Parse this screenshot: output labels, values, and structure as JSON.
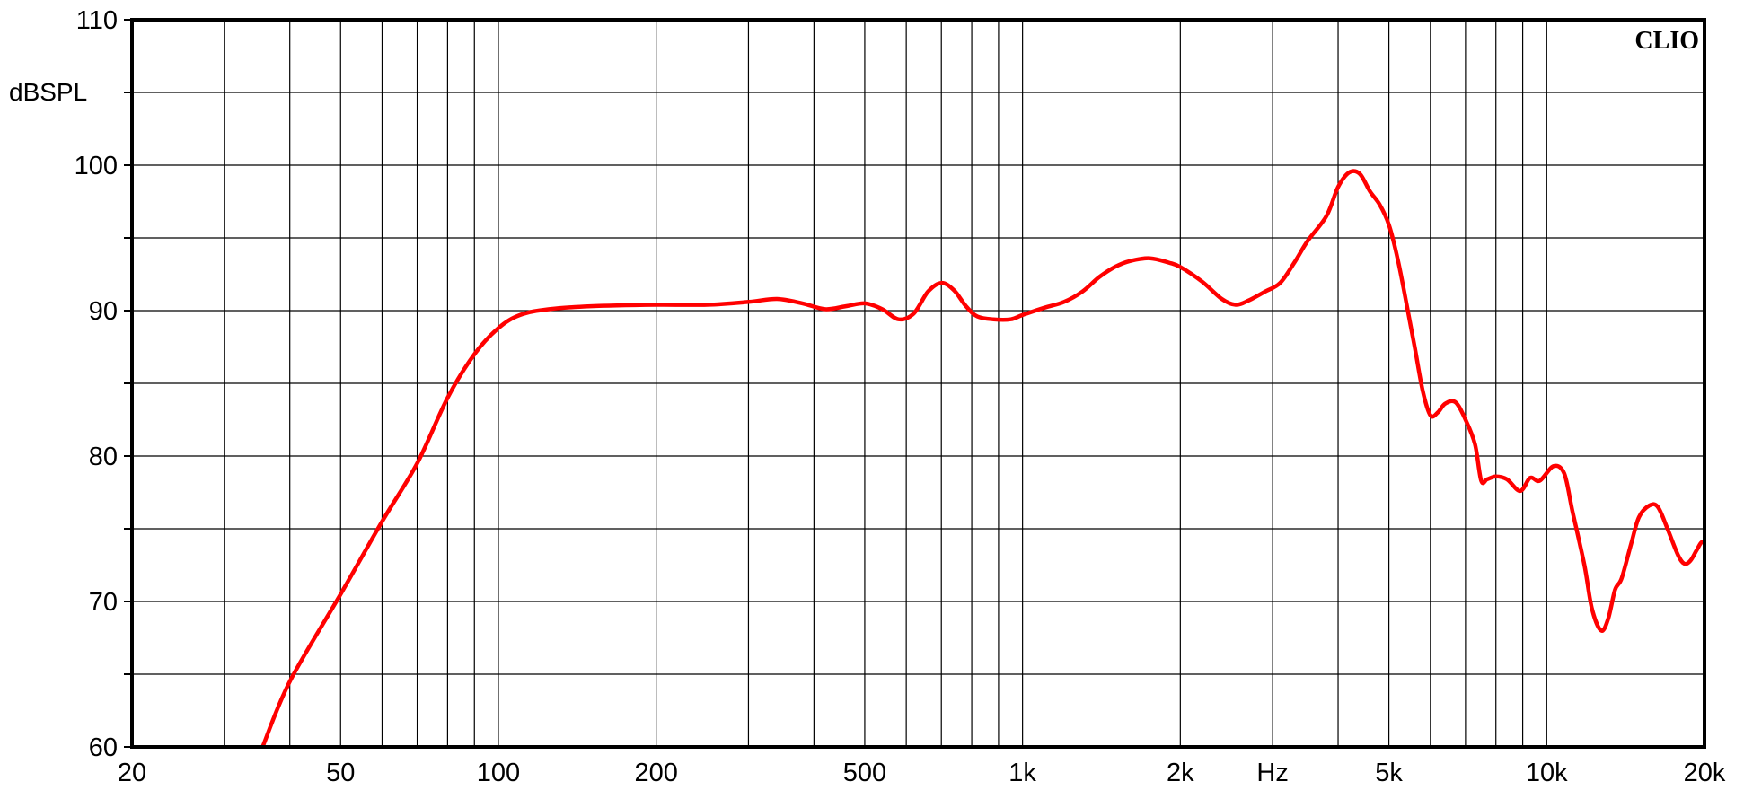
{
  "brand": "CLIO",
  "chart_data": {
    "type": "line",
    "title": "",
    "xlabel": "Hz",
    "ylabel": "dBSPL",
    "xscale": "log",
    "xlim": [
      20,
      20000
    ],
    "ylim": [
      60,
      110
    ],
    "grid": true,
    "x_ticks": [
      {
        "value": 20,
        "label": "20"
      },
      {
        "value": 50,
        "label": "50"
      },
      {
        "value": 100,
        "label": "100"
      },
      {
        "value": 200,
        "label": "200"
      },
      {
        "value": 500,
        "label": "500"
      },
      {
        "value": 1000,
        "label": "1k"
      },
      {
        "value": 2000,
        "label": "2k"
      },
      {
        "value": 5000,
        "label": "5k"
      },
      {
        "value": 10000,
        "label": "10k"
      },
      {
        "value": 20000,
        "label": "20k"
      }
    ],
    "x_gridlines": [
      20,
      30,
      40,
      50,
      60,
      70,
      80,
      90,
      100,
      200,
      300,
      400,
      500,
      600,
      700,
      800,
      900,
      1000,
      2000,
      3000,
      4000,
      5000,
      6000,
      7000,
      8000,
      9000,
      10000,
      20000
    ],
    "y_ticks": [
      60,
      70,
      80,
      90,
      100,
      110
    ],
    "y_gridlines": [
      60,
      65,
      70,
      75,
      80,
      85,
      90,
      95,
      100,
      105,
      110
    ],
    "series": [
      {
        "color": "#ff0000",
        "points": [
          [
            35.5,
            60
          ],
          [
            40,
            64.5
          ],
          [
            50,
            70.5
          ],
          [
            60,
            75.5
          ],
          [
            70,
            79.5
          ],
          [
            80,
            84
          ],
          [
            90,
            87
          ],
          [
            100,
            88.8
          ],
          [
            110,
            89.7
          ],
          [
            125,
            90.1
          ],
          [
            150,
            90.3
          ],
          [
            200,
            90.4
          ],
          [
            250,
            90.4
          ],
          [
            300,
            90.6
          ],
          [
            340,
            90.8
          ],
          [
            380,
            90.5
          ],
          [
            420,
            90.1
          ],
          [
            460,
            90.3
          ],
          [
            500,
            90.5
          ],
          [
            540,
            90.1
          ],
          [
            580,
            89.4
          ],
          [
            620,
            89.8
          ],
          [
            660,
            91.3
          ],
          [
            700,
            91.9
          ],
          [
            740,
            91.4
          ],
          [
            780,
            90.3
          ],
          [
            820,
            89.6
          ],
          [
            880,
            89.4
          ],
          [
            950,
            89.4
          ],
          [
            1000,
            89.7
          ],
          [
            1100,
            90.2
          ],
          [
            1200,
            90.6
          ],
          [
            1300,
            91.3
          ],
          [
            1400,
            92.3
          ],
          [
            1500,
            93.0
          ],
          [
            1600,
            93.4
          ],
          [
            1750,
            93.6
          ],
          [
            1900,
            93.3
          ],
          [
            2000,
            93.0
          ],
          [
            2200,
            92.0
          ],
          [
            2400,
            90.8
          ],
          [
            2550,
            90.4
          ],
          [
            2700,
            90.7
          ],
          [
            2900,
            91.3
          ],
          [
            3100,
            91.9
          ],
          [
            3300,
            93.3
          ],
          [
            3500,
            94.8
          ],
          [
            3800,
            96.5
          ],
          [
            4000,
            98.5
          ],
          [
            4200,
            99.5
          ],
          [
            4400,
            99.4
          ],
          [
            4600,
            98.2
          ],
          [
            4800,
            97.3
          ],
          [
            5000,
            95.9
          ],
          [
            5200,
            93.5
          ],
          [
            5400,
            90.5
          ],
          [
            5600,
            87.5
          ],
          [
            5800,
            84.5
          ],
          [
            6000,
            82.8
          ],
          [
            6200,
            83.0
          ],
          [
            6400,
            83.6
          ],
          [
            6700,
            83.7
          ],
          [
            7000,
            82.5
          ],
          [
            7300,
            80.8
          ],
          [
            7500,
            78.3
          ],
          [
            7700,
            78.4
          ],
          [
            8000,
            78.6
          ],
          [
            8400,
            78.4
          ],
          [
            8900,
            77.6
          ],
          [
            9300,
            78.5
          ],
          [
            9700,
            78.3
          ],
          [
            10300,
            79.3
          ],
          [
            10800,
            78.8
          ],
          [
            11200,
            76.2
          ],
          [
            11800,
            72.5
          ],
          [
            12200,
            69.5
          ],
          [
            12700,
            68.0
          ],
          [
            13100,
            68.8
          ],
          [
            13500,
            70.8
          ],
          [
            13900,
            71.6
          ],
          [
            14500,
            74.0
          ],
          [
            15000,
            75.8
          ],
          [
            15700,
            76.6
          ],
          [
            16300,
            76.5
          ],
          [
            17000,
            75.0
          ],
          [
            17800,
            73.2
          ],
          [
            18300,
            72.6
          ],
          [
            18800,
            72.8
          ],
          [
            19300,
            73.5
          ],
          [
            19800,
            74.1
          ],
          [
            20300,
            73.8
          ],
          [
            20800,
            74.3
          ],
          [
            21400,
            74.4
          ]
        ]
      }
    ]
  }
}
